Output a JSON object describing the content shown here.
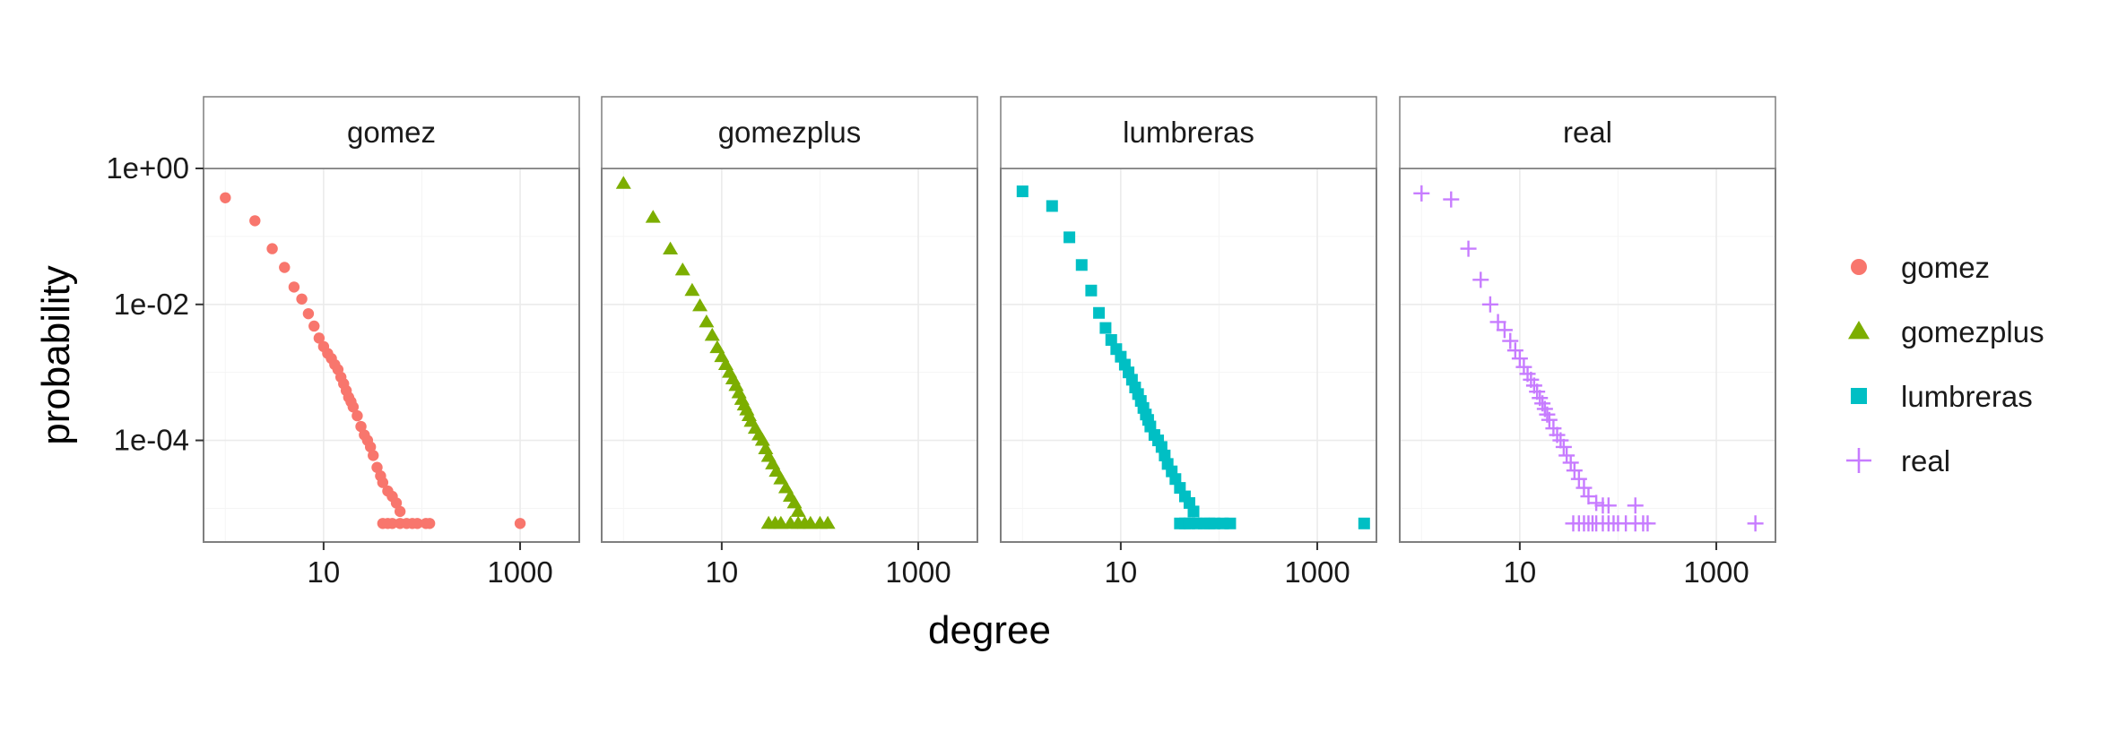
{
  "chart_data": {
    "type": "scatter",
    "facet_by": "series",
    "xlabel": "degree",
    "ylabel": "probability",
    "x_scale": "log10",
    "y_scale": "log10",
    "x_ticks": [
      {
        "value": 10,
        "label": "10"
      },
      {
        "value": 1000,
        "label": "1000"
      }
    ],
    "y_ticks": [
      {
        "value": 1,
        "label": "1e+00"
      },
      {
        "value": 0.01,
        "label": "1e-02"
      },
      {
        "value": 0.0001,
        "label": "1e-04"
      }
    ],
    "xlim": [
      0.6,
      4000
    ],
    "ylim": [
      3.2e-06,
      1
    ],
    "grid": true,
    "legend_position": "right",
    "series": [
      {
        "name": "gomez",
        "color": "#F8766D",
        "shape": "circle",
        "points": [
          [
            1,
            0.37
          ],
          [
            2,
            0.17
          ],
          [
            3,
            0.066
          ],
          [
            4,
            0.035
          ],
          [
            5,
            0.018
          ],
          [
            6,
            0.012
          ],
          [
            7,
            0.0073
          ],
          [
            8,
            0.0048
          ],
          [
            9,
            0.0032
          ],
          [
            10,
            0.0024
          ],
          [
            11,
            0.0019
          ],
          [
            12,
            0.0016
          ],
          [
            13,
            0.0013
          ],
          [
            14,
            0.0011
          ],
          [
            15,
            0.00085
          ],
          [
            16,
            0.00068
          ],
          [
            17,
            0.00054
          ],
          [
            18,
            0.00043
          ],
          [
            19,
            0.00037
          ],
          [
            20,
            0.00031
          ],
          [
            22,
            0.00023
          ],
          [
            24,
            0.00016
          ],
          [
            26,
            0.00012
          ],
          [
            28,
            0.0001
          ],
          [
            30,
            8e-05
          ],
          [
            32,
            6e-05
          ],
          [
            35,
            4e-05
          ],
          [
            38,
            3e-05
          ],
          [
            40,
            2.4e-05
          ],
          [
            45,
            1.8e-05
          ],
          [
            50,
            1.5e-05
          ],
          [
            55,
            1.2e-05
          ],
          [
            60,
            9e-06
          ],
          [
            40,
            6e-06
          ],
          [
            45,
            6e-06
          ],
          [
            50,
            6e-06
          ],
          [
            60,
            6e-06
          ],
          [
            70,
            6e-06
          ],
          [
            80,
            6e-06
          ],
          [
            90,
            6e-06
          ],
          [
            110,
            6e-06
          ],
          [
            120,
            6e-06
          ],
          [
            1000,
            6e-06
          ]
        ]
      },
      {
        "name": "gomezplus",
        "color": "#7CAE00",
        "shape": "triangle",
        "points": [
          [
            1,
            0.6
          ],
          [
            2,
            0.19
          ],
          [
            3,
            0.065
          ],
          [
            4,
            0.032
          ],
          [
            5,
            0.016
          ],
          [
            6,
            0.0095
          ],
          [
            7,
            0.0055
          ],
          [
            8,
            0.0035
          ],
          [
            9,
            0.0023
          ],
          [
            10,
            0.0017
          ],
          [
            11,
            0.0013
          ],
          [
            12,
            0.001
          ],
          [
            13,
            0.0008
          ],
          [
            14,
            0.00064
          ],
          [
            15,
            0.0005
          ],
          [
            16,
            0.0004
          ],
          [
            17,
            0.00033
          ],
          [
            18,
            0.00028
          ],
          [
            19,
            0.00023
          ],
          [
            20,
            0.00019
          ],
          [
            22,
            0.00015
          ],
          [
            24,
            0.00012
          ],
          [
            26,
            0.0001
          ],
          [
            28,
            7.5e-05
          ],
          [
            30,
            5.8e-05
          ],
          [
            33,
            4.5e-05
          ],
          [
            36,
            3.5e-05
          ],
          [
            40,
            2.7e-05
          ],
          [
            45,
            2e-05
          ],
          [
            50,
            1.5e-05
          ],
          [
            55,
            1.2e-05
          ],
          [
            60,
            9e-06
          ],
          [
            30,
            6e-06
          ],
          [
            35,
            6e-06
          ],
          [
            40,
            6e-06
          ],
          [
            50,
            6e-06
          ],
          [
            60,
            6e-06
          ],
          [
            70,
            6e-06
          ],
          [
            80,
            6e-06
          ],
          [
            100,
            6e-06
          ],
          [
            120,
            6e-06
          ]
        ]
      },
      {
        "name": "lumbreras",
        "color": "#00BFC4",
        "shape": "square",
        "points": [
          [
            1,
            0.46
          ],
          [
            2,
            0.28
          ],
          [
            3,
            0.097
          ],
          [
            4,
            0.038
          ],
          [
            5,
            0.016
          ],
          [
            6,
            0.0075
          ],
          [
            7,
            0.0045
          ],
          [
            8,
            0.003
          ],
          [
            9,
            0.0022
          ],
          [
            10,
            0.0017
          ],
          [
            11,
            0.0013
          ],
          [
            12,
            0.001
          ],
          [
            13,
            0.00078
          ],
          [
            14,
            0.0006
          ],
          [
            15,
            0.00048
          ],
          [
            16,
            0.00038
          ],
          [
            17,
            0.0003
          ],
          [
            18,
            0.00024
          ],
          [
            19,
            0.0002
          ],
          [
            20,
            0.00016
          ],
          [
            22,
            0.00012
          ],
          [
            24,
            0.0001
          ],
          [
            26,
            8e-05
          ],
          [
            28,
            6e-05
          ],
          [
            30,
            4.5e-05
          ],
          [
            33,
            3.5e-05
          ],
          [
            36,
            2.7e-05
          ],
          [
            40,
            2e-05
          ],
          [
            45,
            1.5e-05
          ],
          [
            50,
            1.2e-05
          ],
          [
            55,
            9e-06
          ],
          [
            40,
            6e-06
          ],
          [
            45,
            6e-06
          ],
          [
            50,
            6e-06
          ],
          [
            60,
            6e-06
          ],
          [
            70,
            6e-06
          ],
          [
            80,
            6e-06
          ],
          [
            90,
            6e-06
          ],
          [
            110,
            6e-06
          ],
          [
            130,
            6e-06
          ],
          [
            3000,
            6e-06
          ]
        ]
      },
      {
        "name": "real",
        "color": "#C77CFF",
        "shape": "cross",
        "points": [
          [
            1,
            0.43
          ],
          [
            2,
            0.35
          ],
          [
            3,
            0.066
          ],
          [
            4,
            0.023
          ],
          [
            5,
            0.01
          ],
          [
            6,
            0.0055
          ],
          [
            7,
            0.0042
          ],
          [
            8,
            0.0029
          ],
          [
            9,
            0.0021
          ],
          [
            10,
            0.0016
          ],
          [
            11,
            0.0012
          ],
          [
            12,
            0.00095
          ],
          [
            13,
            0.00078
          ],
          [
            14,
            0.00064
          ],
          [
            15,
            0.00052
          ],
          [
            16,
            0.00042
          ],
          [
            17,
            0.00035
          ],
          [
            18,
            0.00029
          ],
          [
            19,
            0.00024
          ],
          [
            20,
            0.0002
          ],
          [
            22,
            0.00015
          ],
          [
            24,
            0.00012
          ],
          [
            26,
            0.0001
          ],
          [
            28,
            8e-05
          ],
          [
            30,
            6e-05
          ],
          [
            33,
            4.7e-05
          ],
          [
            36,
            3.6e-05
          ],
          [
            40,
            2.7e-05
          ],
          [
            45,
            2e-05
          ],
          [
            50,
            1.5e-05
          ],
          [
            60,
            1.2e-05
          ],
          [
            70,
            1.1e-05
          ],
          [
            80,
            1.1e-05
          ],
          [
            150,
            1.1e-05
          ],
          [
            35,
            6e-06
          ],
          [
            40,
            6e-06
          ],
          [
            45,
            6e-06
          ],
          [
            50,
            6e-06
          ],
          [
            55,
            6e-06
          ],
          [
            60,
            6e-06
          ],
          [
            70,
            6e-06
          ],
          [
            80,
            6e-06
          ],
          [
            90,
            6e-06
          ],
          [
            100,
            6e-06
          ],
          [
            120,
            6e-06
          ],
          [
            150,
            6e-06
          ],
          [
            180,
            6e-06
          ],
          [
            200,
            6e-06
          ],
          [
            2500,
            6e-06
          ]
        ]
      }
    ]
  }
}
